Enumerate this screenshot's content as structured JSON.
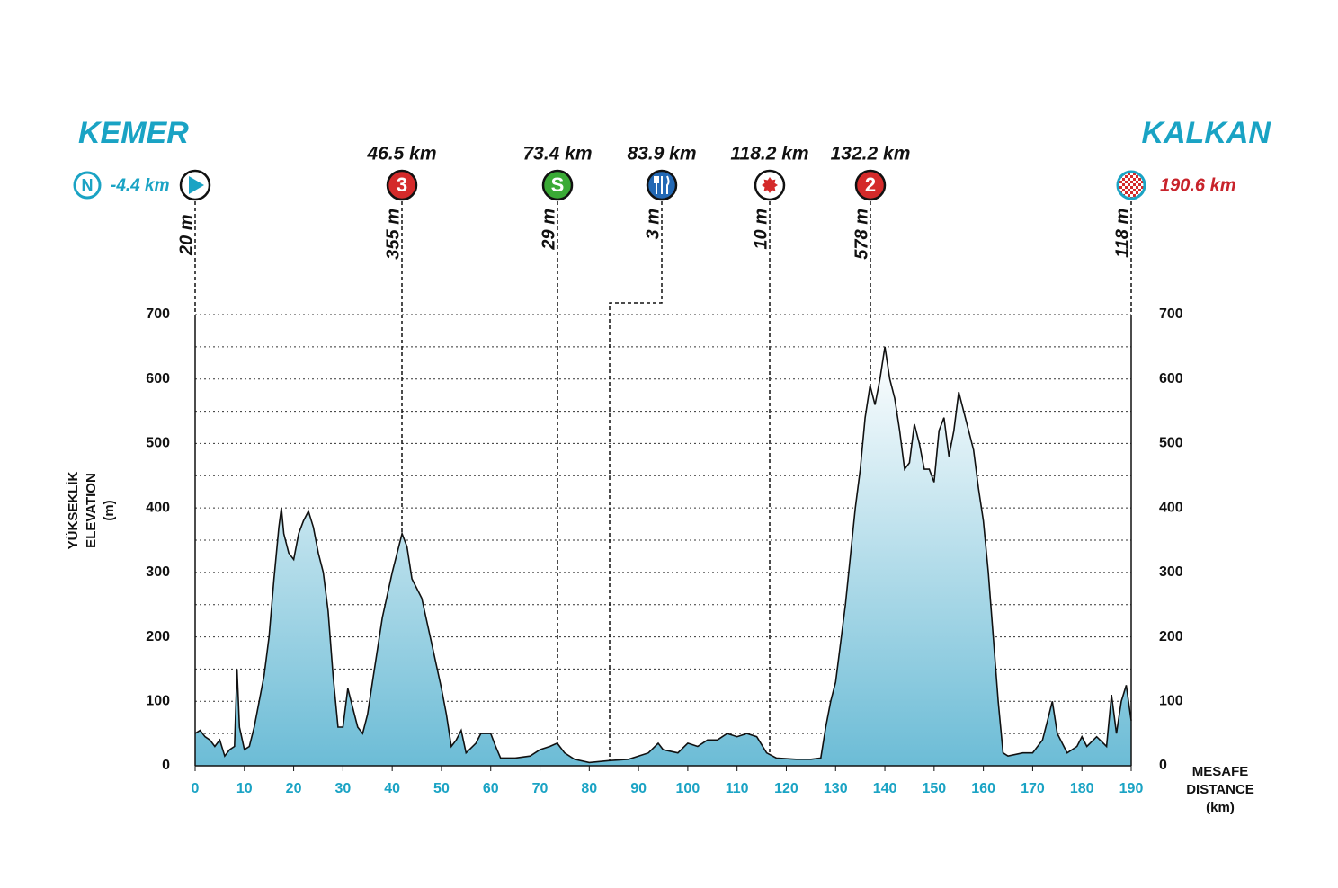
{
  "chart_data": {
    "type": "area",
    "x_axis_title": [
      "MESAFE",
      "DISTANCE",
      "(km)"
    ],
    "y_axis_title": [
      "YÜKSEKLİK",
      "ELEVATION",
      "(m)"
    ],
    "color": "#6cbcd6",
    "line_color": "#111111",
    "x": [
      0,
      1,
      2,
      3,
      4,
      5,
      6,
      7,
      8,
      8.5,
      9,
      10,
      11,
      12,
      13,
      14,
      15,
      16,
      17,
      17.5,
      18,
      19,
      20,
      21,
      22,
      23,
      24,
      25,
      26,
      27,
      28,
      29,
      30,
      31,
      32,
      33,
      34,
      35,
      36,
      38,
      40,
      42,
      43,
      44,
      46,
      48,
      50,
      51,
      52,
      53,
      54,
      55,
      57,
      58,
      60,
      61,
      62,
      65,
      68,
      70,
      72,
      73.5,
      75,
      77,
      80,
      84,
      88,
      90,
      92,
      94,
      95,
      98,
      100,
      102,
      104,
      106,
      108,
      110,
      112,
      114,
      116,
      118,
      122,
      125,
      127,
      128,
      129,
      130,
      132,
      134,
      135,
      136,
      137,
      138,
      139,
      140,
      141,
      142,
      143,
      144,
      145,
      146,
      147,
      148,
      149,
      150,
      151,
      152,
      153,
      154,
      155,
      156,
      157,
      158,
      159,
      160,
      161,
      162,
      163,
      164,
      165,
      168,
      170,
      172,
      173,
      174,
      175,
      177,
      179,
      180,
      181,
      183,
      185,
      186,
      187,
      188,
      189,
      190
    ],
    "values": [
      50,
      55,
      45,
      40,
      30,
      40,
      15,
      25,
      30,
      150,
      60,
      25,
      30,
      60,
      100,
      140,
      200,
      290,
      370,
      400,
      360,
      330,
      320,
      360,
      380,
      395,
      370,
      330,
      300,
      240,
      140,
      60,
      60,
      120,
      90,
      60,
      50,
      80,
      130,
      230,
      300,
      360,
      340,
      290,
      260,
      190,
      120,
      80,
      30,
      40,
      55,
      20,
      35,
      50,
      50,
      30,
      12,
      12,
      15,
      25,
      30,
      35,
      20,
      10,
      5,
      8,
      10,
      15,
      20,
      35,
      25,
      20,
      35,
      30,
      40,
      40,
      50,
      45,
      50,
      45,
      20,
      12,
      10,
      10,
      12,
      60,
      100,
      130,
      250,
      400,
      460,
      540,
      590,
      560,
      600,
      650,
      600,
      570,
      520,
      460,
      470,
      530,
      500,
      460,
      460,
      440,
      520,
      540,
      480,
      520,
      580,
      550,
      520,
      490,
      430,
      380,
      300,
      200,
      100,
      20,
      15,
      20,
      20,
      40,
      70,
      100,
      50,
      20,
      30,
      45,
      30,
      45,
      30,
      110,
      50,
      100,
      125,
      70
    ],
    "xlim": [
      0,
      190
    ],
    "xticks": [
      0,
      10,
      20,
      30,
      40,
      50,
      60,
      70,
      80,
      90,
      100,
      110,
      120,
      130,
      140,
      150,
      160,
      170,
      180,
      190
    ],
    "ylim": [
      0,
      700
    ],
    "yticks": [
      0,
      100,
      200,
      300,
      400,
      500,
      600,
      700
    ],
    "grid": true
  },
  "start": {
    "name": "KEMER",
    "neutral_icon": "N",
    "neutral_km": "-4.4 km",
    "elevation": "20 m"
  },
  "finish": {
    "name": "KALKAN",
    "km": "190.6 km",
    "elevation": "118 m"
  },
  "points": [
    {
      "km": "46.5 km",
      "elevation": "355 m",
      "icon": "3",
      "color": "#d42a2a"
    },
    {
      "km": "73.4 km",
      "elevation": "29 m",
      "icon": "S",
      "color": "#3aaa35"
    },
    {
      "km": "83.9 km",
      "elevation": "3 m",
      "symbol": "fork",
      "color": "#2268b4"
    },
    {
      "km": "118.2 km",
      "elevation": "10 m",
      "symbol": "star",
      "color": "#d42a2a"
    },
    {
      "km": "132.2 km",
      "elevation": "578 m",
      "icon": "2",
      "color": "#d42a2a"
    }
  ]
}
